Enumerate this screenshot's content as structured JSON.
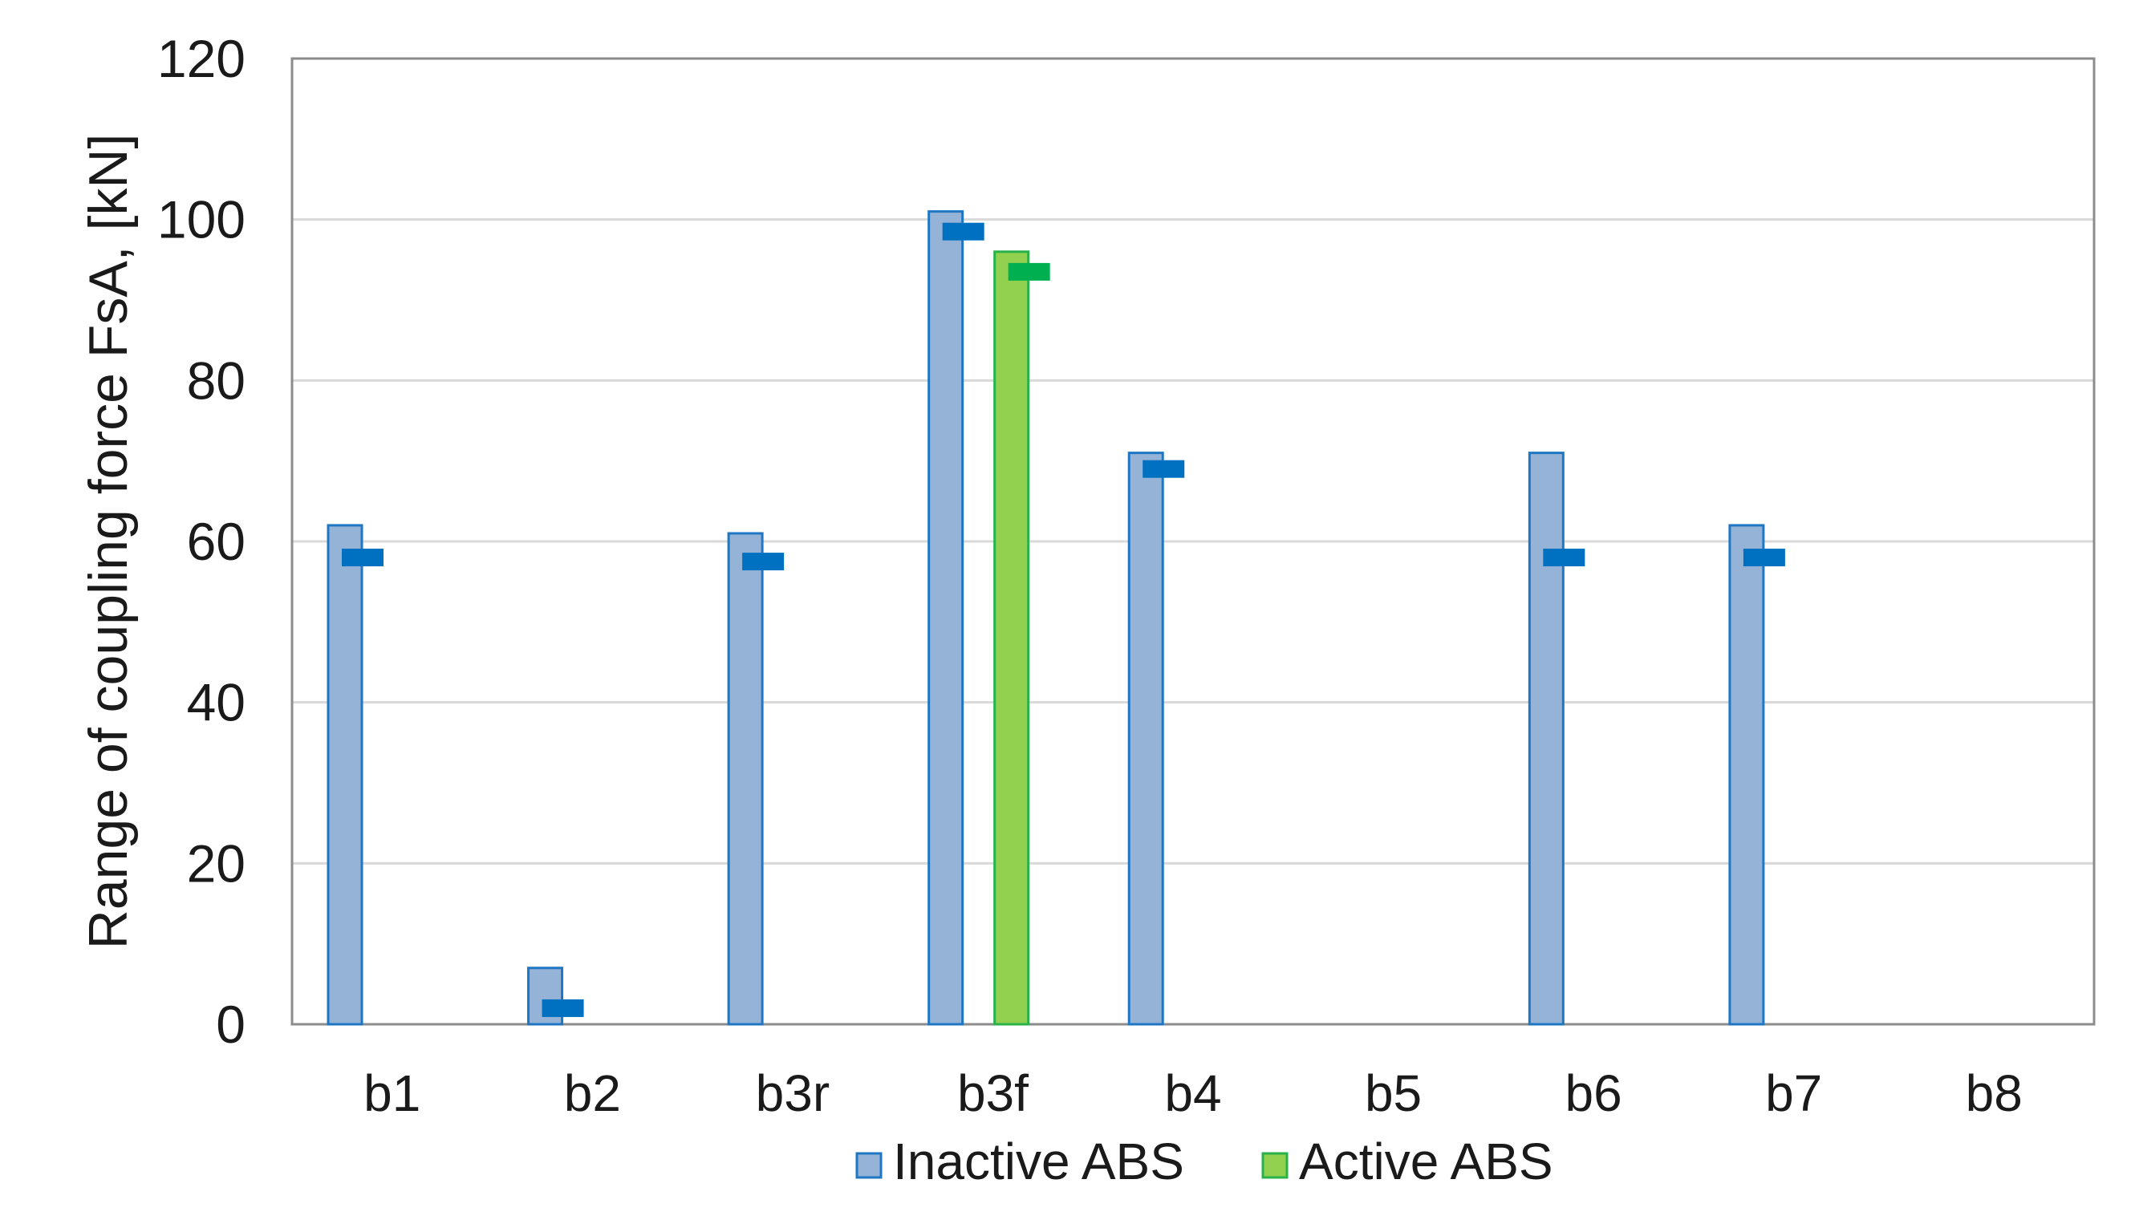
{
  "chart_data": {
    "type": "bar",
    "title": "",
    "xlabel": "",
    "ylabel": "Range of coupling force FsA, [kN]",
    "ylim": [
      0,
      120
    ],
    "yticks": [
      0,
      20,
      40,
      60,
      80,
      100,
      120
    ],
    "grid": true,
    "legend_position": "bottom",
    "categories": [
      "b1",
      "b2",
      "b3r",
      "b3f",
      "b4",
      "b5",
      "b6",
      "b7",
      "b8"
    ],
    "series": [
      {
        "name": "Inactive ABS",
        "color": "#95b3d7",
        "edge_color": "#1f77c4",
        "marker_color": "#0070c0",
        "values": [
          62,
          7,
          61,
          101,
          71,
          null,
          71,
          62,
          null
        ],
        "markers": [
          58,
          2,
          57.5,
          98.5,
          69,
          null,
          58,
          58,
          null
        ]
      },
      {
        "name": "Active ABS",
        "color": "#92d050",
        "edge_color": "#2ab24a",
        "marker_color": "#00b050",
        "values": [
          null,
          null,
          null,
          96,
          null,
          null,
          null,
          null,
          null
        ],
        "markers": [
          null,
          null,
          null,
          93.5,
          null,
          null,
          null,
          null,
          null
        ]
      }
    ]
  }
}
